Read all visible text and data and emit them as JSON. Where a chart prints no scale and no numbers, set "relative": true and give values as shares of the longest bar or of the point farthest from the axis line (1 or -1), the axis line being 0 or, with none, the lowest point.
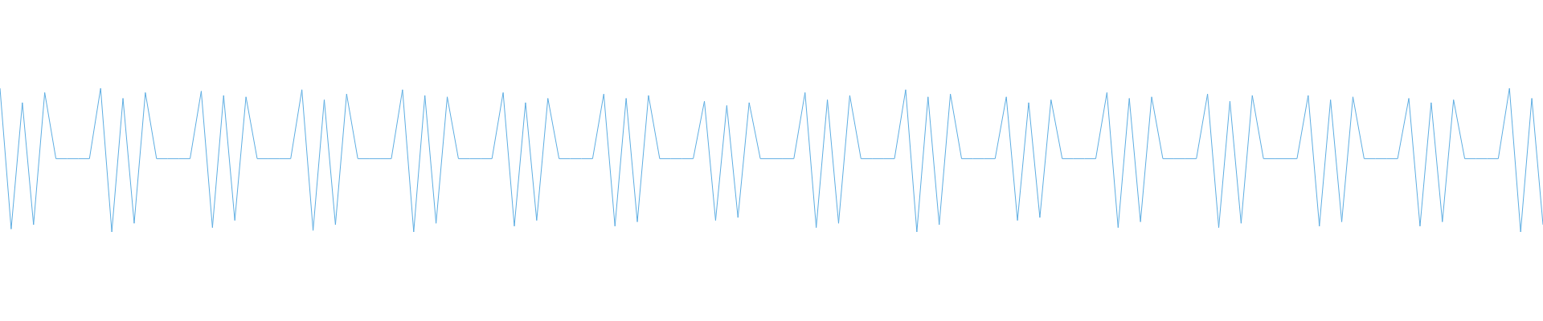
{
  "chart_data": {
    "type": "line",
    "relative": true,
    "color": "#5dade2",
    "marker": "none",
    "categories": [
      null,
      null,
      null,
      null,
      null,
      null,
      null,
      null,
      null,
      null,
      null,
      null,
      null,
      null,
      null,
      null,
      null,
      null,
      null,
      null,
      null,
      null,
      null,
      null,
      null,
      null,
      null,
      null,
      null,
      null,
      null,
      null,
      null,
      null,
      null,
      null,
      null,
      null,
      null,
      null,
      null,
      null,
      null,
      null,
      null,
      null,
      null,
      null,
      null,
      null,
      null,
      null,
      null,
      null,
      null,
      null,
      null,
      null,
      null,
      null,
      null,
      null,
      null,
      null,
      null,
      null,
      null,
      null,
      null,
      null,
      null,
      null,
      null,
      null,
      null,
      null,
      null,
      null,
      null,
      null,
      null,
      null,
      null,
      null,
      null,
      null,
      null,
      null,
      null,
      null,
      null,
      null,
      null,
      null,
      null,
      null,
      null,
      null,
      null,
      null,
      null,
      null,
      null,
      null,
      null,
      null,
      null,
      null,
      null,
      null,
      null,
      null,
      null,
      null,
      null,
      null,
      null,
      null,
      null,
      null,
      null,
      null,
      null,
      null,
      null,
      null,
      null,
      null,
      null,
      null,
      null,
      null,
      null,
      null,
      null,
      null,
      null,
      null,
      null
    ],
    "values": [
      1.0,
      0.02,
      0.9,
      0.05,
      0.97,
      0.51,
      0.51,
      0.51,
      0.51,
      1.0,
      0.0,
      0.93,
      0.06,
      0.97,
      0.51,
      0.51,
      0.51,
      0.51,
      0.98,
      0.03,
      0.95,
      0.08,
      0.94,
      0.51,
      0.51,
      0.51,
      0.51,
      0.99,
      0.01,
      0.92,
      0.05,
      0.96,
      0.51,
      0.51,
      0.51,
      0.51,
      0.99,
      0.0,
      0.95,
      0.06,
      0.94,
      0.51,
      0.51,
      0.51,
      0.51,
      0.97,
      0.04,
      0.9,
      0.08,
      0.93,
      0.51,
      0.51,
      0.51,
      0.51,
      0.96,
      0.04,
      0.93,
      0.07,
      0.95,
      0.51,
      0.51,
      0.51,
      0.51,
      0.91,
      0.08,
      0.88,
      0.1,
      0.9,
      0.51,
      0.51,
      0.51,
      0.51,
      0.97,
      0.03,
      0.92,
      0.06,
      0.95,
      0.51,
      0.51,
      0.51,
      0.51,
      0.99,
      0.0,
      0.94,
      0.05,
      0.96,
      0.51,
      0.51,
      0.51,
      0.51,
      0.94,
      0.08,
      0.9,
      0.1,
      0.92,
      0.51,
      0.51,
      0.51,
      0.51,
      0.97,
      0.03,
      0.93,
      0.07,
      0.94,
      0.51,
      0.51,
      0.51,
      0.51,
      0.96,
      0.03,
      0.91,
      0.06,
      0.95,
      0.51,
      0.51,
      0.51,
      0.51,
      0.95,
      0.04,
      0.92,
      0.07,
      0.94,
      0.51,
      0.51,
      0.51,
      0.51,
      0.93,
      0.04,
      0.9,
      0.07,
      0.92,
      0.51,
      0.51,
      0.51,
      0.51,
      1.0,
      0.0,
      0.93,
      0.05
    ]
  }
}
